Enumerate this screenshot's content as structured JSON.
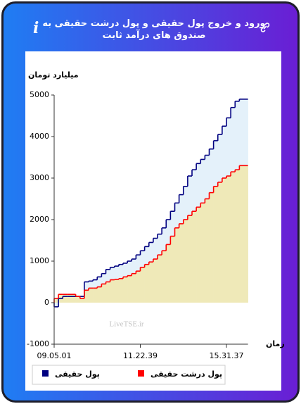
{
  "title": "ورود و خروج پول حقیقی و پول درشت حقیقی به صندوق های درآمد ثابت",
  "chart_data": {
    "type": "step",
    "y_label": "میلیارد تومان",
    "x_label": "زمان",
    "watermark": "LiveTSE.ir",
    "categories": [
      "09.05.01",
      null,
      null,
      null,
      null,
      null,
      null,
      null,
      null,
      null,
      null,
      null,
      null,
      null,
      null,
      null,
      null,
      null,
      null,
      null,
      "11.22.39",
      null,
      null,
      null,
      null,
      null,
      null,
      null,
      null,
      null,
      null,
      null,
      null,
      null,
      null,
      null,
      null,
      null,
      null,
      null,
      "15.31.37",
      null,
      null,
      null,
      null
    ],
    "series": [
      {
        "name": "پول حقیقی",
        "color": "#000080",
        "fill": "#e4f1fa",
        "values": [
          -100,
          100,
          150,
          150,
          150,
          150,
          150,
          500,
          520,
          550,
          620,
          700,
          800,
          850,
          880,
          920,
          950,
          1000,
          1050,
          1150,
          1250,
          1350,
          1450,
          1550,
          1650,
          1800,
          2000,
          2200,
          2400,
          2600,
          2800,
          3050,
          3200,
          3350,
          3450,
          3550,
          3700,
          3900,
          4050,
          4250,
          4450,
          4700,
          4850,
          4900,
          4900
        ]
      },
      {
        "name": "پول درشت حقیقی",
        "color": "#ff0000",
        "fill": "#efe9b8",
        "values": [
          100,
          200,
          200,
          200,
          200,
          150,
          100,
          300,
          350,
          350,
          380,
          450,
          500,
          550,
          560,
          580,
          620,
          650,
          700,
          760,
          850,
          920,
          980,
          1050,
          1150,
          1250,
          1400,
          1600,
          1800,
          1900,
          2000,
          2100,
          2200,
          2300,
          2400,
          2500,
          2650,
          2800,
          2900,
          3000,
          3050,
          3150,
          3200,
          3300,
          3300
        ]
      }
    ],
    "ylim": [
      -1000,
      5000
    ],
    "yticks": [
      -1000,
      0,
      1000,
      2000,
      3000,
      4000,
      5000
    ],
    "grid": false
  }
}
